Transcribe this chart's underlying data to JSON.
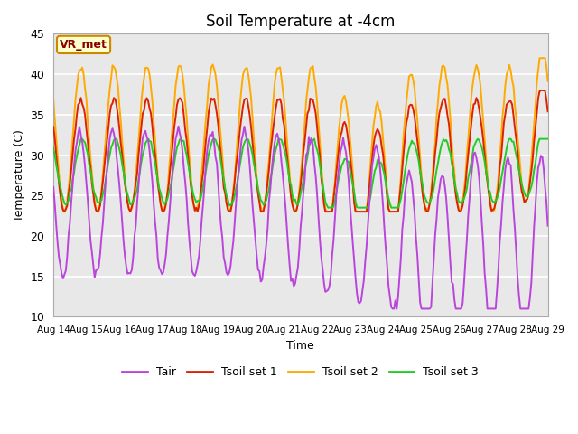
{
  "title": "Soil Temperature at -4cm",
  "xlabel": "Time",
  "ylabel": "Temperature (C)",
  "ylim": [
    10,
    45
  ],
  "bg_color": "#e8e8e8",
  "grid_color": "white",
  "annotation_text": "VR_met",
  "annotation_bg": "#ffffcc",
  "annotation_border": "#cc8800",
  "annotation_text_color": "#8b0000",
  "colors": {
    "Tair": "#bb44dd",
    "Tsoil set 1": "#dd2200",
    "Tsoil set 2": "#ffaa00",
    "Tsoil set 3": "#22cc22"
  },
  "xtick_labels": [
    "Aug 14",
    "Aug 15",
    "Aug 16",
    "Aug 17",
    "Aug 18",
    "Aug 19",
    "Aug 20",
    "Aug 21",
    "Aug 22",
    "Aug 23",
    "Aug 24",
    "Aug 25",
    "Aug 26",
    "Aug 27",
    "Aug 28",
    "Aug 29"
  ],
  "xtick_positions": [
    0,
    24,
    48,
    72,
    96,
    120,
    144,
    168,
    192,
    216,
    240,
    264,
    288,
    312,
    336,
    360
  ],
  "ytick_labels": [
    "10",
    "15",
    "20",
    "25",
    "30",
    "35",
    "40",
    "45"
  ],
  "ytick_positions": [
    10,
    15,
    20,
    25,
    30,
    35,
    40,
    45
  ],
  "n_points": 361
}
